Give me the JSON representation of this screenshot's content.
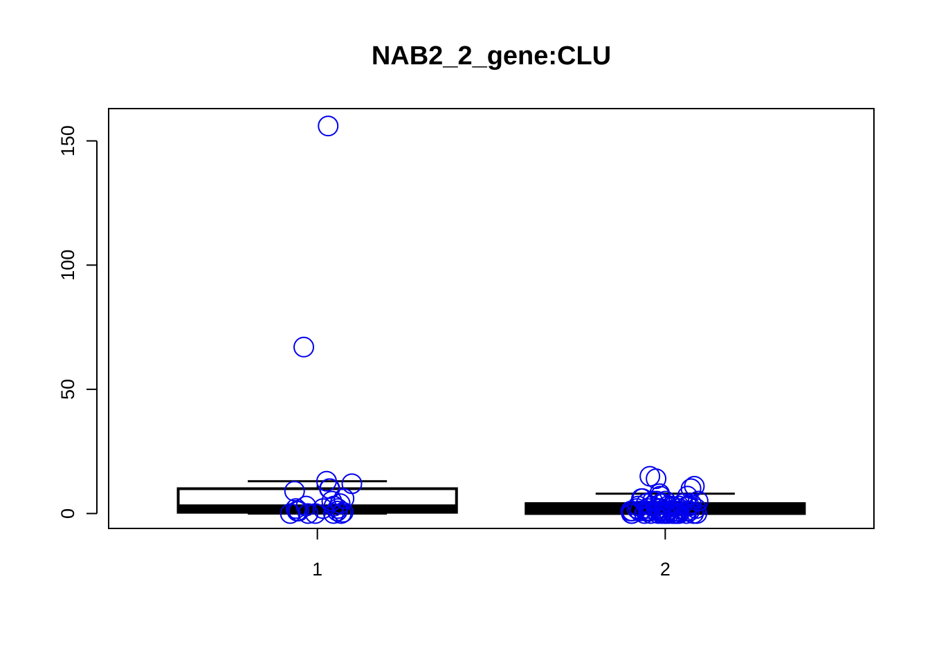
{
  "chart_data": {
    "type": "boxplot",
    "title": "NAB2_2_gene:CLU",
    "xlabel": "",
    "ylabel": "",
    "categories": [
      "1",
      "2"
    ],
    "ylim": [
      -6,
      163
    ],
    "y_ticks": [
      0,
      50,
      100,
      150
    ],
    "grid": false,
    "legend": "none",
    "point_color": "#0000ee",
    "box_color": "#000000",
    "boxes": [
      {
        "category": "1",
        "min": 0,
        "q1": 0.5,
        "median": 2,
        "q3": 10,
        "max": 13
      },
      {
        "category": "2",
        "min": 0,
        "q1": 0,
        "median": 2,
        "q3": 4,
        "max": 8
      }
    ],
    "points": [
      {
        "group": "1",
        "values": [
          156,
          67,
          13,
          12,
          10,
          10,
          9,
          6,
          5,
          4,
          3,
          3,
          2,
          2,
          2,
          1,
          1,
          1,
          0.5,
          0,
          0,
          0,
          0,
          0
        ]
      },
      {
        "group": "2",
        "values": [
          15,
          14,
          11,
          10,
          8,
          7,
          7,
          6,
          6,
          5,
          5,
          5,
          5,
          4,
          4,
          4,
          4,
          4,
          3,
          3,
          3,
          3,
          3,
          3,
          3,
          2,
          2,
          2,
          2,
          2,
          2,
          2,
          2,
          2,
          2,
          1,
          1,
          1,
          1,
          1,
          1,
          1,
          1,
          1,
          1,
          1,
          1,
          1,
          0,
          0,
          0,
          0,
          0,
          0,
          0,
          0,
          0,
          0,
          0,
          0,
          0,
          0,
          0,
          0,
          0,
          0,
          0,
          0
        ]
      }
    ]
  }
}
